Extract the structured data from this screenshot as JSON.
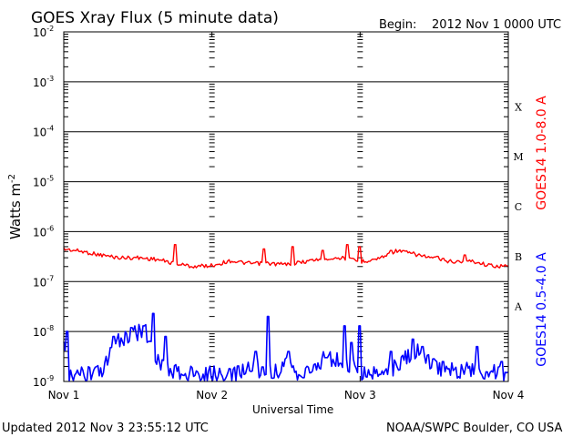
{
  "header": {
    "title": "GOES Xray Flux (5 minute data)",
    "begin_label": "Begin:",
    "begin_value": "2012 Nov 1 0000 UTC"
  },
  "footer": {
    "updated": "Updated 2012 Nov  3 23:55:12 UTC",
    "credit": "NOAA/SWPC Boulder, CO USA"
  },
  "chart_data": {
    "type": "line",
    "title": "GOES Xray Flux (5 minute data)",
    "xlabel": "Universal Time",
    "ylabel": "Watts m",
    "ylabel_exp": "-2",
    "y_scale": "log",
    "ylim": [
      1e-09,
      0.01
    ],
    "xlim": [
      "2012-11-01",
      "2012-11-04"
    ],
    "x_ticks": [
      "Nov 1",
      "Nov 2",
      "Nov 3",
      "Nov 4"
    ],
    "y_ticks": [
      {
        "base": "10",
        "exp": "-2"
      },
      {
        "base": "10",
        "exp": "-3"
      },
      {
        "base": "10",
        "exp": "-4"
      },
      {
        "base": "10",
        "exp": "-5"
      },
      {
        "base": "10",
        "exp": "-6"
      },
      {
        "base": "10",
        "exp": "-7"
      },
      {
        "base": "10",
        "exp": "-8"
      },
      {
        "base": "10",
        "exp": "-9"
      }
    ],
    "flare_classes": [
      "X",
      "M",
      "C",
      "B",
      "A"
    ],
    "grid": true,
    "series": [
      {
        "name": "GOES14 1.0-8.0 A",
        "color": "#ff0000",
        "x": [
          "2012-11-01T00:00",
          "2012-11-01T03:00",
          "2012-11-01T06:00",
          "2012-11-01T09:00",
          "2012-11-01T12:00",
          "2012-11-01T15:00",
          "2012-11-01T18:00",
          "2012-11-01T21:00",
          "2012-11-02T00:00",
          "2012-11-02T03:00",
          "2012-11-02T06:00",
          "2012-11-02T09:00",
          "2012-11-02T12:00",
          "2012-11-02T15:00",
          "2012-11-02T18:00",
          "2012-11-02T21:00",
          "2012-11-03T00:00",
          "2012-11-03T03:00",
          "2012-11-03T06:00",
          "2012-11-03T09:00",
          "2012-11-03T12:00",
          "2012-11-03T15:00",
          "2012-11-03T18:00",
          "2012-11-03T21:00",
          "2012-11-04T00:00"
        ],
        "y": [
          4.5e-07,
          4e-07,
          3.4e-07,
          3e-07,
          3e-07,
          2.8e-07,
          2.3e-07,
          2e-07,
          2.1e-07,
          2.6e-07,
          2.3e-07,
          2.3e-07,
          2.2e-07,
          2.5e-07,
          2.9e-07,
          3e-07,
          2.5e-07,
          2.9e-07,
          4.2e-07,
          3.5e-07,
          2.9e-07,
          2.5e-07,
          2.6e-07,
          2.1e-07,
          2e-07
        ],
        "spikes": [
          {
            "x": "2012-11-01T18:00",
            "y": 5.5e-07
          },
          {
            "x": "2012-11-02T08:20",
            "y": 4.5e-07
          },
          {
            "x": "2012-11-02T13:00",
            "y": 5e-07
          },
          {
            "x": "2012-11-02T18:00",
            "y": 4.2e-07
          },
          {
            "x": "2012-11-02T22:00",
            "y": 5.5e-07
          },
          {
            "x": "2012-11-03T00:00",
            "y": 5e-07
          },
          {
            "x": "2012-11-03T05:00",
            "y": 4.2e-07
          },
          {
            "x": "2012-11-03T12:30",
            "y": 3.2e-07
          },
          {
            "x": "2012-11-03T17:00",
            "y": 3.4e-07
          }
        ]
      },
      {
        "name": "GOES14 0.5-4.0 A",
        "color": "#0000ff",
        "x": [
          "2012-11-01T00:00",
          "2012-11-01T01:00",
          "2012-11-01T03:00",
          "2012-11-01T06:00",
          "2012-11-01T09:00",
          "2012-11-01T11:00",
          "2012-11-01T13:00",
          "2012-11-01T15:00",
          "2012-11-01T18:00",
          "2012-11-01T21:00",
          "2012-11-02T00:00",
          "2012-11-02T03:00",
          "2012-11-02T06:00",
          "2012-11-02T09:00",
          "2012-11-02T12:00",
          "2012-11-02T15:00",
          "2012-11-02T18:00",
          "2012-11-02T21:00",
          "2012-11-03T00:00",
          "2012-11-03T03:00",
          "2012-11-03T06:00",
          "2012-11-03T09:00",
          "2012-11-03T12:00",
          "2012-11-03T15:00",
          "2012-11-03T18:00",
          "2012-11-03T21:00",
          "2012-11-04T00:00"
        ],
        "y": [
          5e-09,
          1.2e-09,
          1.3e-09,
          1.4e-09,
          7e-09,
          8e-09,
          1.2e-08,
          3e-09,
          1.5e-09,
          1.3e-09,
          1.4e-09,
          1.2e-09,
          2e-09,
          1.5e-09,
          2e-09,
          1.3e-09,
          3e-09,
          2.5e-09,
          1.6e-09,
          1.4e-09,
          2e-09,
          4e-09,
          2e-09,
          1.8e-09,
          1.6e-09,
          1.5e-09,
          1.4e-09
        ],
        "spikes": [
          {
            "x": "2012-11-01T00:30",
            "y": 1e-08
          },
          {
            "x": "2012-11-01T08:00",
            "y": 8e-09
          },
          {
            "x": "2012-11-01T11:00",
            "y": 1.2e-08
          },
          {
            "x": "2012-11-01T13:00",
            "y": 1.3e-08
          },
          {
            "x": "2012-11-01T14:30",
            "y": 2.3e-08
          },
          {
            "x": "2012-11-01T16:30",
            "y": 8e-09
          },
          {
            "x": "2012-11-02T07:00",
            "y": 4e-09
          },
          {
            "x": "2012-11-02T09:00",
            "y": 2e-08
          },
          {
            "x": "2012-11-02T12:30",
            "y": 4e-09
          },
          {
            "x": "2012-11-02T18:30",
            "y": 3e-09
          },
          {
            "x": "2012-11-02T21:30",
            "y": 1.3e-08
          },
          {
            "x": "2012-11-02T22:30",
            "y": 6e-09
          },
          {
            "x": "2012-11-03T00:00",
            "y": 1.3e-08
          },
          {
            "x": "2012-11-03T05:00",
            "y": 4e-09
          },
          {
            "x": "2012-11-03T08:30",
            "y": 7e-09
          },
          {
            "x": "2012-11-03T10:00",
            "y": 5e-09
          },
          {
            "x": "2012-11-03T13:30",
            "y": 2.5e-09
          },
          {
            "x": "2012-11-03T19:00",
            "y": 5e-09
          },
          {
            "x": "2012-11-03T23:00",
            "y": 2.5e-09
          }
        ]
      }
    ]
  }
}
